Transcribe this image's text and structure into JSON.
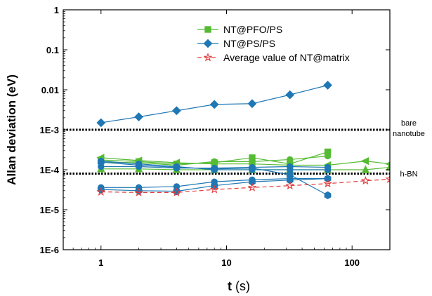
{
  "chart_data": {
    "type": "scatter",
    "xlabel_main": "t",
    "xlabel_unit": " (s)",
    "ylabel": "Allan deviation (eV)",
    "x_scale": "log",
    "y_scale": "log",
    "xlim": [
      0.5,
      200
    ],
    "ylim": [
      1e-06,
      1
    ],
    "x_ticks": [
      {
        "v": 1,
        "label": "1"
      },
      {
        "v": 10,
        "label": "10"
      },
      {
        "v": 100,
        "label": "100"
      }
    ],
    "y_ticks": [
      {
        "v": 1,
        "label": "1"
      },
      {
        "v": 0.1,
        "label": "0.1"
      },
      {
        "v": 0.01,
        "label": "0.01"
      },
      {
        "v": 0.001,
        "label": "1E-3"
      },
      {
        "v": 0.0001,
        "label": "1E-4"
      },
      {
        "v": 1e-05,
        "label": "1E-5"
      },
      {
        "v": 1e-06,
        "label": "1E-6"
      }
    ],
    "grid": false,
    "legend_position": "top-center",
    "legend": [
      {
        "label": "NT@PFO/PS",
        "color": "#55bb33",
        "marker": "square",
        "dash": false
      },
      {
        "label": "NT@PS/PS",
        "color": "#1f77b4",
        "marker": "diamond",
        "dash": false
      },
      {
        "label": "Average value of NT@matrix",
        "color": "#e03c3c",
        "marker": "star",
        "dash": true
      }
    ],
    "reference_lines": [
      {
        "y": 0.001,
        "label_lines": [
          "bare",
          "nanotube"
        ]
      },
      {
        "y": 8e-05,
        "label_lines": [
          "h-BN"
        ]
      }
    ],
    "series": [
      {
        "group": "NT@PS/PS",
        "color": "#1f77b4",
        "marker": "diamond",
        "x": [
          1,
          2,
          4,
          8,
          16,
          32,
          64
        ],
        "y": [
          0.0015,
          0.0021,
          0.003,
          0.0043,
          0.0045,
          0.0075,
          0.013
        ]
      },
      {
        "group": "NT@PFO/PS",
        "color": "#55bb33",
        "marker": "triangle-left",
        "x": [
          1,
          2,
          4,
          8,
          16,
          32,
          64,
          128,
          200
        ],
        "y": [
          0.0002,
          0.00017,
          0.00015,
          0.00014,
          0.00014,
          0.00013,
          0.00013,
          0.000165,
          0.00014
        ]
      },
      {
        "group": "NT@PFO/PS",
        "color": "#55bb33",
        "marker": "square",
        "x": [
          1,
          2,
          4,
          8,
          16,
          32,
          64
        ],
        "y": [
          0.000175,
          0.00016,
          0.00014,
          0.00015,
          0.0002,
          0.00014,
          0.00028
        ]
      },
      {
        "group": "NT@PFO/PS",
        "color": "#55bb33",
        "marker": "circle",
        "x": [
          1,
          2,
          4,
          8,
          16,
          32,
          64
        ],
        "y": [
          0.000155,
          0.00015,
          0.00013,
          0.00016,
          0.00016,
          0.00018,
          0.00022
        ]
      },
      {
        "group": "NT@PFO/PS",
        "color": "#55bb33",
        "marker": "triangle-up",
        "x": [
          1,
          2,
          4,
          8,
          16,
          32,
          64,
          128,
          200
        ],
        "y": [
          0.000105,
          0.000105,
          0.0001,
          0.0001,
          0.0001,
          0.0001,
          0.0001,
          0.0001,
          0.000115
        ]
      },
      {
        "group": "NT@PS/PS",
        "color": "#1f77b4",
        "marker": "circle",
        "x": [
          1,
          2,
          4,
          8,
          16,
          32,
          64
        ],
        "y": [
          0.000165,
          0.00014,
          0.00012,
          0.0001,
          0.0001,
          0.0001,
          0.0001
        ]
      },
      {
        "group": "NT@PS/PS",
        "color": "#1f77b4",
        "marker": "circle",
        "x": [
          1,
          2,
          4,
          8,
          16,
          32,
          64
        ],
        "y": [
          0.00012,
          0.00012,
          0.00011,
          0.00011,
          0.000115,
          0.00012,
          0.000115
        ]
      },
      {
        "group": "NT@PS/PS",
        "color": "#1f77b4",
        "marker": "hexagon",
        "x": [
          1,
          2,
          4,
          8,
          16,
          32,
          64
        ],
        "y": [
          0.000155,
          0.00013,
          0.000115,
          0.000105,
          0.00011,
          7.5e-05,
          2.3e-05
        ]
      },
      {
        "group": "NT@PS/PS",
        "color": "#1f77b4",
        "marker": "circle",
        "x": [
          1,
          2,
          4,
          8,
          16,
          32,
          64
        ],
        "y": [
          3.6e-05,
          3.6e-05,
          3.8e-05,
          5e-05,
          5.6e-05,
          6e-05,
          6e-05
        ]
      },
      {
        "group": "NT@PS/PS",
        "color": "#1f77b4",
        "marker": "hexagon",
        "x": [
          1,
          2,
          4,
          8,
          16,
          32,
          64
        ],
        "y": [
          3.2e-05,
          3e-05,
          2.9e-05,
          4e-05,
          5e-05,
          5.5e-05,
          6e-05
        ]
      },
      {
        "group": "Average value of NT@matrix",
        "color": "#e03c3c",
        "marker": "star",
        "dash": true,
        "x": [
          1,
          2,
          4,
          8,
          16,
          32,
          64,
          128,
          200
        ],
        "y": [
          2.8e-05,
          2.7e-05,
          2.7e-05,
          3.2e-05,
          3.6e-05,
          4e-05,
          4.5e-05,
          5.3e-05,
          5.8e-05
        ]
      }
    ]
  }
}
